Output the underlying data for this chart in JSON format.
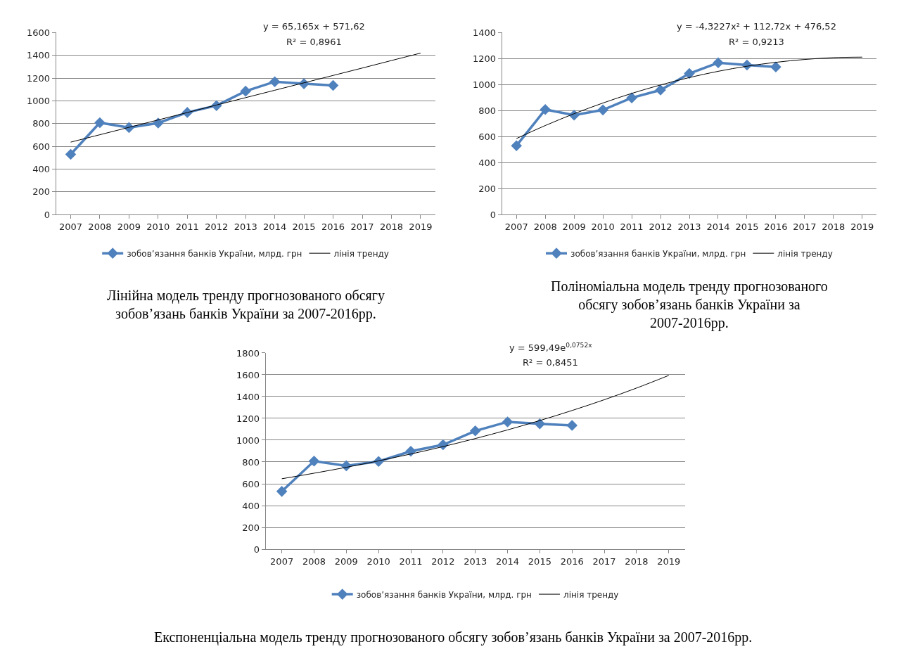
{
  "chart_data": [
    {
      "type": "line",
      "title": "Лінійна модель тренду прогнозованого обсягу зобов’язань банків України за 2007-2016рр.",
      "annotations": [
        "y = 65,165x + 571,62",
        "R² = 0,8961"
      ],
      "categories": [
        "2007",
        "2008",
        "2009",
        "2010",
        "2011",
        "2012",
        "2013",
        "2014",
        "2015",
        "2016",
        "2017",
        "2018",
        "2019"
      ],
      "series": [
        {
          "name": "зобов’язання банків України, млрд. грн",
          "color": "#4f81bd",
          "marker": "diamond",
          "values": [
            530,
            808,
            765,
            805,
            898,
            958,
            1085,
            1168,
            1150,
            1135,
            null,
            null,
            null
          ]
        },
        {
          "name": "лінія тренду",
          "color": "#000000",
          "marker": "none",
          "values": [
            637,
            702,
            767,
            832,
            897,
            963,
            1028,
            1093,
            1158,
            1223,
            1288,
            1354,
            1419
          ]
        }
      ],
      "ylim": [
        0,
        1600
      ],
      "yticks": [
        0,
        200,
        400,
        600,
        800,
        1000,
        1200,
        1400,
        1600
      ],
      "grid": "y",
      "legend": "bottom"
    },
    {
      "type": "line",
      "title": "Поліноміальна модель тренду прогнозованого обсягу зобов’язань банків України за 2007-2016рр.",
      "annotations": [
        "y = -4,3227x² + 112,72x + 476,52",
        "R² = 0,9213"
      ],
      "categories": [
        "2007",
        "2008",
        "2009",
        "2010",
        "2011",
        "2012",
        "2013",
        "2014",
        "2015",
        "2016",
        "2017",
        "2018",
        "2019"
      ],
      "series": [
        {
          "name": "зобов’язання банків України, млрд. грн",
          "color": "#4f81bd",
          "marker": "diamond",
          "values": [
            530,
            808,
            765,
            805,
            898,
            958,
            1085,
            1168,
            1150,
            1135,
            null,
            null,
            null
          ]
        },
        {
          "name": "лінія тренду",
          "color": "#000000",
          "marker": "none",
          "values": [
            585,
            685,
            776,
            858,
            932,
            997,
            1054,
            1102,
            1141,
            1171,
            1193,
            1207,
            1211
          ]
        }
      ],
      "ylim": [
        0,
        1400
      ],
      "yticks": [
        0,
        200,
        400,
        600,
        800,
        1000,
        1200,
        1400
      ],
      "grid": "y",
      "legend": "bottom"
    },
    {
      "type": "line",
      "title": "Експоненціальна модель тренду прогнозованого обсягу зобов’язань банків України за 2007-2016рр.",
      "annotations": [
        "y = 599,49e$^{0,0752x}$",
        "R² = 0,8451"
      ],
      "categories": [
        "2007",
        "2008",
        "2009",
        "2010",
        "2011",
        "2012",
        "2013",
        "2014",
        "2015",
        "2016",
        "2017",
        "2018",
        "2019"
      ],
      "series": [
        {
          "name": "зобов’язання банків України, млрд. грн",
          "color": "#4f81bd",
          "marker": "diamond",
          "values": [
            530,
            808,
            765,
            805,
            898,
            958,
            1085,
            1168,
            1150,
            1135,
            null,
            null,
            null
          ]
        },
        {
          "name": "лінія тренду",
          "color": "#000000",
          "marker": "none",
          "values": [
            646,
            697,
            751,
            810,
            873,
            941,
            1015,
            1094,
            1180,
            1272,
            1371,
            1478,
            1594
          ]
        }
      ],
      "ylim": [
        0,
        1800
      ],
      "yticks": [
        0,
        200,
        400,
        600,
        800,
        1000,
        1200,
        1400,
        1600,
        1800
      ],
      "grid": "y",
      "legend": "bottom"
    }
  ]
}
